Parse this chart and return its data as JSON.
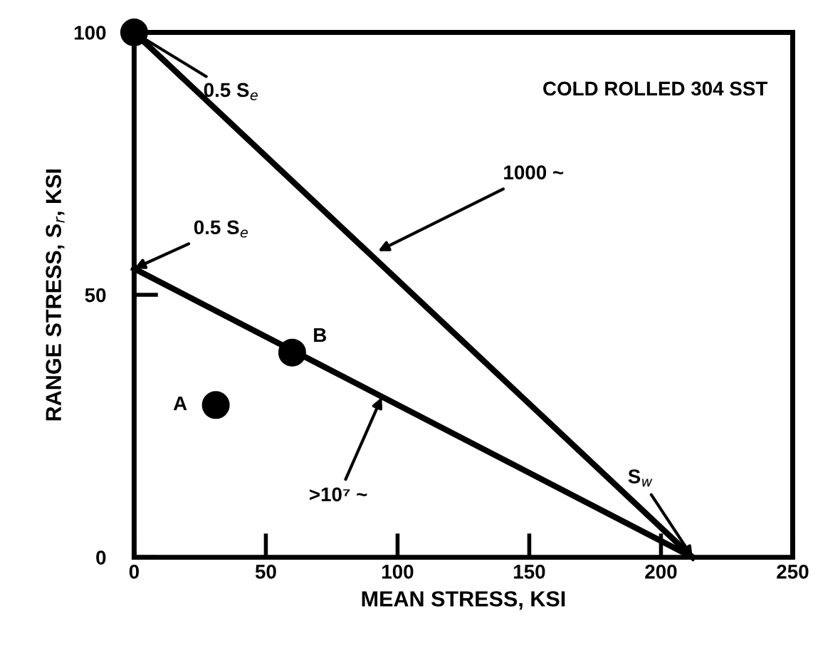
{
  "chart_data": {
    "type": "line",
    "xlabel": "MEAN STRESS, KSI",
    "ylabel": "RANGE STRESS, S$_{r}$, KSI",
    "series": [
      {
        "color": "#000000",
        "x": [
          0,
          212
        ],
        "values": [
          100,
          0
        ]
      },
      {
        "color": "#000000",
        "x": [
          0,
          212
        ],
        "values": [
          55,
          0
        ]
      },
      {
        "type": "scatter",
        "color": "#000000",
        "x": [
          0
        ],
        "values": [
          100
        ],
        "marker": "circle"
      },
      {
        "type": "scatter",
        "name": "A",
        "color": "#000000",
        "x": [
          31
        ],
        "values": [
          29
        ],
        "marker": "circle"
      },
      {
        "type": "scatter",
        "name": "B",
        "color": "#000000",
        "x": [
          60
        ],
        "values": [
          39
        ],
        "marker": "circle"
      }
    ],
    "annotations": [
      "COLD ROLLED 304 SST",
      {
        "text": "0.5 S$_{e}$",
        "x": 0,
        "y": 100
      },
      {
        "text": "0.5 S$_{e}$",
        "x": 0,
        "y": 55
      },
      {
        "text": "S$_{w}$",
        "x": 212,
        "y": 0
      },
      "1000 ~",
      {
        "text": ">10⁷ ~",
        "x": 94,
        "y": 30.5
      }
    ],
    "xlim": [
      0,
      250
    ],
    "ylim": [
      0,
      100
    ],
    "xticks": [
      0,
      50,
      100,
      150,
      200,
      250
    ],
    "yticks": [
      0,
      50,
      100
    ],
    "grid": false,
    "legend": false,
    "line_style": "solid"
  }
}
